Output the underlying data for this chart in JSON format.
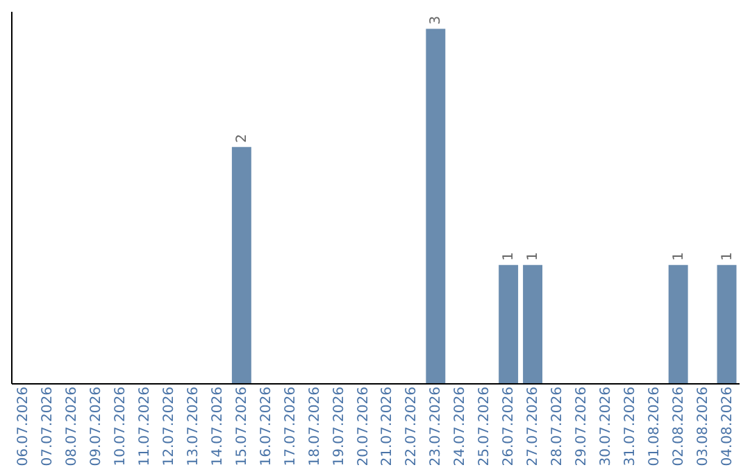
{
  "chart_data": {
    "type": "bar",
    "categories": [
      "06.07.2026",
      "07.07.2026",
      "08.07.2026",
      "09.07.2026",
      "10.07.2026",
      "11.07.2026",
      "12.07.2026",
      "13.07.2026",
      "14.07.2026",
      "15.07.2026",
      "16.07.2026",
      "17.07.2026",
      "18.07.2026",
      "19.07.2026",
      "20.07.2026",
      "21.07.2026",
      "22.07.2026",
      "23.07.2026",
      "24.07.2026",
      "25.07.2026",
      "26.07.2026",
      "27.07.2026",
      "28.07.2026",
      "29.07.2026",
      "30.07.2026",
      "31.07.2026",
      "01.08.2026",
      "02.08.2026",
      "03.08.2026",
      "04.08.2026"
    ],
    "values": [
      0,
      0,
      0,
      0,
      0,
      0,
      0,
      0,
      0,
      2,
      0,
      0,
      0,
      0,
      0,
      0,
      0,
      3,
      0,
      0,
      1,
      1,
      0,
      0,
      0,
      0,
      0,
      1,
      0,
      1
    ],
    "value_labels": [
      null,
      null,
      null,
      null,
      null,
      null,
      null,
      null,
      null,
      "2",
      null,
      null,
      null,
      null,
      null,
      null,
      null,
      "3",
      null,
      null,
      "1",
      "1",
      null,
      null,
      null,
      null,
      null,
      "1",
      null,
      "1"
    ],
    "color": "#6a8caf",
    "grid": false,
    "tick_labels": "x"
  }
}
